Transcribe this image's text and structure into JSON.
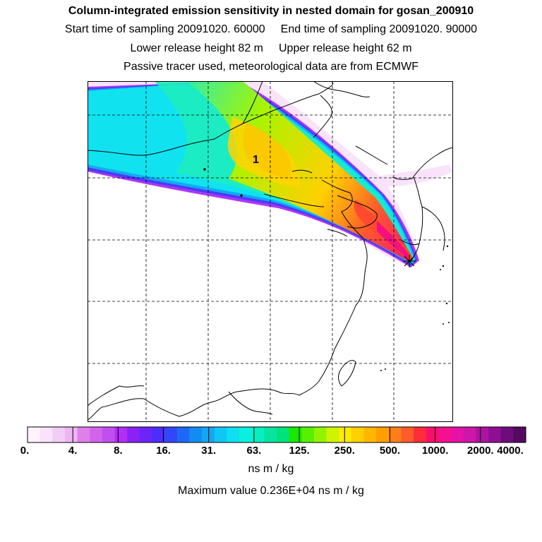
{
  "header": {
    "title": "Column-integrated emission sensitivity in nested domain for gosan_200910",
    "start_label": "Start time of sampling 20091020. 60000",
    "end_label": "End time of sampling 20091020. 90000",
    "lower_label": "Lower release height   82 m",
    "upper_label": "Upper release height   62 m",
    "tracer_note": "Passive tracer used, meteorological data are from ECMWF"
  },
  "map": {
    "release_marker_label": "1",
    "grid": true
  },
  "chart_data": {
    "type": "heatmap",
    "title": "Column-integrated emission sensitivity in nested domain for gosan_200910",
    "colorbar": {
      "tick_labels": [
        "0.",
        "4.",
        "8.",
        "16.",
        "31.",
        "63.",
        "125.",
        "250.",
        "500.",
        "1000.",
        "2000.",
        "4000."
      ],
      "unit": "ns m / kg",
      "colors": [
        "#fdf2fd",
        "#f9e2fa",
        "#f3cdf5",
        "#edb5f1",
        "#de7fea",
        "#d463ec",
        "#c34ef0",
        "#b22df7",
        "#8a21f5",
        "#6c24f7",
        "#4b2ef9",
        "#3346fa",
        "#1d69f5",
        "#148bf3",
        "#12a7f3",
        "#10c6f2",
        "#0fdff0",
        "#0af0e0",
        "#08eec3",
        "#06e5a0",
        "#00e37a",
        "#1ae800",
        "#56f000",
        "#93f200",
        "#cdf400",
        "#ffea00",
        "#ffcf00",
        "#ffb600",
        "#ff9e00",
        "#ff7e1a",
        "#ff5a2b",
        "#ff2c39",
        "#fb0f6c",
        "#f41091",
        "#e412a5",
        "#cd16aa",
        "#ae12a2",
        "#8f0f92",
        "#6e0c7c",
        "#55095f"
      ]
    },
    "maximum_text": "Maximum value  0.236E+04 ns m / kg",
    "maximum_value": 2360
  }
}
